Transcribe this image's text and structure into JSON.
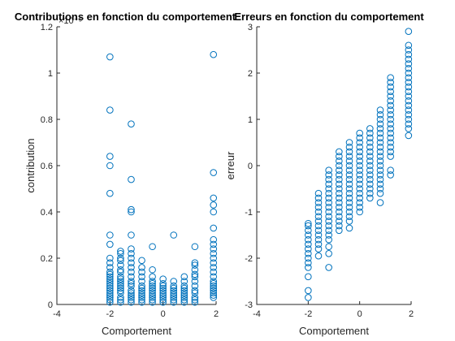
{
  "chart_data": [
    {
      "type": "scatter",
      "title": "Contributions en fonction du comportement",
      "xlabel": "Comportement",
      "ylabel": "contribution",
      "exponent_label": "×10⁻⁵",
      "xlim": [
        -4,
        2
      ],
      "ylim": [
        0,
        1.2
      ],
      "xticks": [
        "-4",
        "-2",
        "0",
        "2"
      ],
      "yticks": [
        "0",
        "0.2",
        "0.4",
        "0.6",
        "0.8",
        "1",
        "1.2"
      ],
      "marker_color": "#0072BD",
      "columns": [
        {
          "x": -2.0,
          "y": [
            0.01,
            0.02,
            0.03,
            0.04,
            0.05,
            0.06,
            0.07,
            0.08,
            0.09,
            0.1,
            0.11,
            0.12,
            0.13,
            0.14,
            0.16,
            0.18,
            0.2,
            0.26,
            0.3,
            0.48,
            0.6,
            0.64,
            0.84,
            1.07
          ]
        },
        {
          "x": -1.6,
          "y": [
            0.01,
            0.02,
            0.03,
            0.05,
            0.06,
            0.07,
            0.08,
            0.09,
            0.1,
            0.11,
            0.12,
            0.14,
            0.15,
            0.17,
            0.19,
            0.2,
            0.22,
            0.23
          ]
        },
        {
          "x": -1.2,
          "y": [
            0.01,
            0.02,
            0.03,
            0.04,
            0.05,
            0.06,
            0.08,
            0.09,
            0.1,
            0.12,
            0.14,
            0.16,
            0.18,
            0.2,
            0.22,
            0.24,
            0.3,
            0.4,
            0.41,
            0.54,
            0.78
          ]
        },
        {
          "x": -0.8,
          "y": [
            0.01,
            0.02,
            0.03,
            0.04,
            0.05,
            0.06,
            0.07,
            0.08,
            0.1,
            0.12,
            0.14,
            0.16,
            0.19
          ]
        },
        {
          "x": -0.4,
          "y": [
            0.01,
            0.02,
            0.03,
            0.04,
            0.05,
            0.06,
            0.07,
            0.08,
            0.09,
            0.1,
            0.12,
            0.15,
            0.25
          ]
        },
        {
          "x": 0.0,
          "y": [
            0.01,
            0.02,
            0.03,
            0.04,
            0.05,
            0.06,
            0.07,
            0.08,
            0.09,
            0.11
          ]
        },
        {
          "x": 0.4,
          "y": [
            0.01,
            0.02,
            0.03,
            0.04,
            0.05,
            0.06,
            0.07,
            0.08,
            0.1,
            0.3
          ]
        },
        {
          "x": 0.8,
          "y": [
            0.01,
            0.02,
            0.03,
            0.04,
            0.05,
            0.06,
            0.07,
            0.08,
            0.1,
            0.12
          ]
        },
        {
          "x": 1.2,
          "y": [
            0.01,
            0.02,
            0.03,
            0.05,
            0.06,
            0.08,
            0.1,
            0.12,
            0.13,
            0.15,
            0.17,
            0.18,
            0.25
          ]
        },
        {
          "x": 1.9,
          "y": [
            0.03,
            0.04,
            0.05,
            0.06,
            0.07,
            0.08,
            0.09,
            0.1,
            0.12,
            0.14,
            0.16,
            0.18,
            0.2,
            0.22,
            0.24,
            0.26,
            0.28,
            0.33,
            0.4,
            0.43,
            0.46,
            0.57,
            1.08
          ]
        }
      ]
    },
    {
      "type": "scatter",
      "title": "Erreurs en fonction du comportement",
      "xlabel": "Comportement",
      "ylabel": "erreur",
      "xlim": [
        -4,
        2
      ],
      "ylim": [
        -3,
        3
      ],
      "xticks": [
        "-4",
        "-2",
        "0",
        "2"
      ],
      "yticks": [
        "-3",
        "-2",
        "-1",
        "0",
        "1",
        "2",
        "3"
      ],
      "marker_color": "#0072BD",
      "columns": [
        {
          "x": -2.0,
          "y": [
            -2.85,
            -2.7,
            -2.4,
            -2.2,
            -2.1,
            -2.0,
            -1.9,
            -1.8,
            -1.7,
            -1.6,
            -1.5,
            -1.4,
            -1.3,
            -1.25
          ]
        },
        {
          "x": -1.6,
          "y": [
            -1.95,
            -1.8,
            -1.7,
            -1.6,
            -1.5,
            -1.4,
            -1.3,
            -1.2,
            -1.1,
            -1.0,
            -0.9,
            -0.8,
            -0.7,
            -0.6
          ]
        },
        {
          "x": -1.2,
          "y": [
            -2.2,
            -1.9,
            -1.75,
            -1.6,
            -1.5,
            -1.4,
            -1.3,
            -1.2,
            -1.1,
            -1.0,
            -0.9,
            -0.8,
            -0.7,
            -0.6,
            -0.5,
            -0.4,
            -0.3,
            -0.2,
            -0.1
          ]
        },
        {
          "x": -0.8,
          "y": [
            -1.4,
            -1.3,
            -1.2,
            -1.1,
            -1.0,
            -0.9,
            -0.8,
            -0.7,
            -0.6,
            -0.5,
            -0.4,
            -0.3,
            -0.2,
            -0.1,
            0.0,
            0.1,
            0.2,
            0.3
          ]
        },
        {
          "x": -0.4,
          "y": [
            -1.35,
            -1.2,
            -1.1,
            -1.0,
            -0.9,
            -0.8,
            -0.7,
            -0.6,
            -0.5,
            -0.4,
            -0.3,
            -0.2,
            -0.1,
            0.0,
            0.1,
            0.2,
            0.3,
            0.4,
            0.5
          ]
        },
        {
          "x": 0.0,
          "y": [
            -1.0,
            -0.9,
            -0.8,
            -0.7,
            -0.6,
            -0.5,
            -0.4,
            -0.3,
            -0.2,
            -0.1,
            0.0,
            0.1,
            0.2,
            0.3,
            0.4,
            0.5,
            0.6,
            0.7
          ]
        },
        {
          "x": 0.4,
          "y": [
            -0.7,
            -0.6,
            -0.5,
            -0.4,
            -0.3,
            -0.2,
            -0.1,
            0.0,
            0.1,
            0.2,
            0.3,
            0.4,
            0.5,
            0.6,
            0.7,
            0.8
          ]
        },
        {
          "x": 0.8,
          "y": [
            -0.8,
            -0.6,
            -0.5,
            -0.4,
            -0.3,
            -0.2,
            -0.1,
            0.0,
            0.1,
            0.2,
            0.3,
            0.4,
            0.5,
            0.6,
            0.7,
            0.8,
            0.9,
            1.0,
            1.1,
            1.2
          ]
        },
        {
          "x": 1.2,
          "y": [
            -0.2,
            -0.1,
            0.2,
            0.3,
            0.4,
            0.5,
            0.6,
            0.7,
            0.8,
            0.9,
            1.0,
            1.1,
            1.2,
            1.3,
            1.4,
            1.5,
            1.6,
            1.7,
            1.8,
            1.9
          ]
        },
        {
          "x": 1.9,
          "y": [
            0.65,
            0.8,
            0.9,
            1.0,
            1.1,
            1.2,
            1.3,
            1.4,
            1.5,
            1.6,
            1.7,
            1.8,
            1.9,
            2.0,
            2.1,
            2.2,
            2.3,
            2.4,
            2.5,
            2.6,
            2.9
          ]
        }
      ]
    }
  ]
}
